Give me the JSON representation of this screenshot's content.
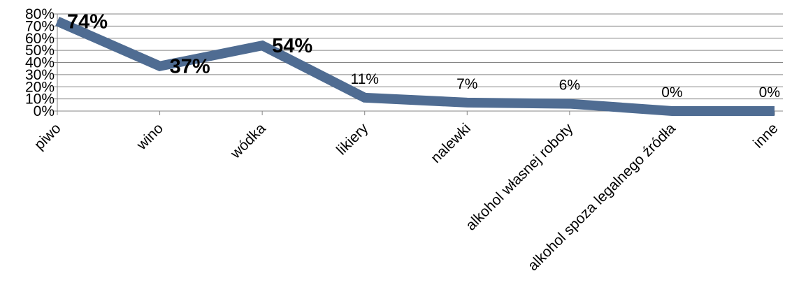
{
  "chart_data": {
    "type": "line",
    "categories": [
      "piwo",
      "wino",
      "wódka",
      "likiery",
      "nalewki",
      "alkohol własnej roboty",
      "alkohol spoza legalnego źródła",
      "inne"
    ],
    "values": [
      74,
      37,
      54,
      11,
      7,
      6,
      0,
      0
    ],
    "data_labels": [
      "74%",
      "37%",
      "54%",
      "11%",
      "7%",
      "6%",
      "0%",
      "0%"
    ],
    "ytick_labels": [
      "0%",
      "10%",
      "20%",
      "30%",
      "40%",
      "50%",
      "60%",
      "70%",
      "80%"
    ],
    "ylim": [
      0,
      80
    ],
    "grid": true,
    "legend": "none",
    "colors": {
      "series": "#4F6C92",
      "grid": "#868686",
      "text": "#000000"
    }
  }
}
